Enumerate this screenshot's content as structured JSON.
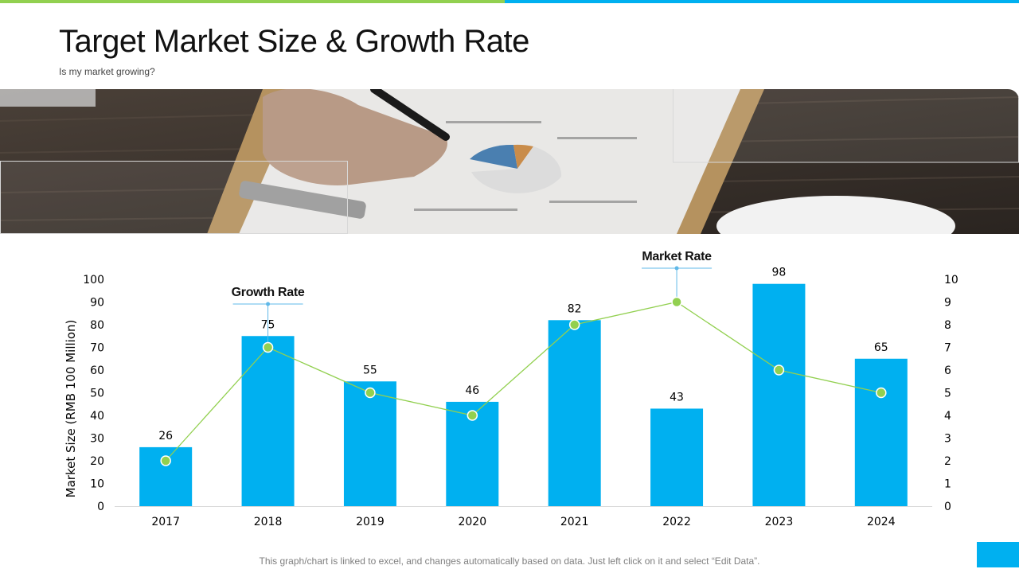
{
  "page": {
    "title": "Target Market Size & Growth Rate",
    "subtitle": "Is my market growing?",
    "footer": "This graph/chart is linked to excel, and changes automatically based on data. Just left click on it and select “Edit Data”."
  },
  "colors": {
    "bar": "#00b0f0",
    "line": "#92d050",
    "accent_green": "#92d050",
    "accent_blue": "#00b0f0",
    "axis_text": "#000000"
  },
  "chart_data": {
    "type": "bar",
    "categories": [
      "2017",
      "2018",
      "2019",
      "2020",
      "2021",
      "2022",
      "2023",
      "2024"
    ],
    "series": [
      {
        "type": "bar",
        "axis": "left",
        "values": [
          26,
          75,
          55,
          46,
          82,
          43,
          98,
          65
        ]
      },
      {
        "type": "line",
        "axis": "right",
        "values": [
          2,
          7,
          5,
          4,
          8,
          9,
          6,
          5
        ]
      }
    ],
    "ylabel": "Market Size (RMB 100 Million)",
    "ylim": [
      0,
      100
    ],
    "yticks": [
      0,
      10,
      20,
      30,
      40,
      50,
      60,
      70,
      80,
      90,
      100
    ],
    "y2lim": [
      0,
      10
    ],
    "y2ticks": [
      0,
      1,
      2,
      3,
      4,
      5,
      6,
      7,
      8,
      9,
      10
    ],
    "grid": false,
    "annotations": [
      {
        "text": "Growth Rate",
        "category": "2018",
        "series": 1
      },
      {
        "text": "Market Rate",
        "category": "2022",
        "series": 1
      }
    ]
  }
}
